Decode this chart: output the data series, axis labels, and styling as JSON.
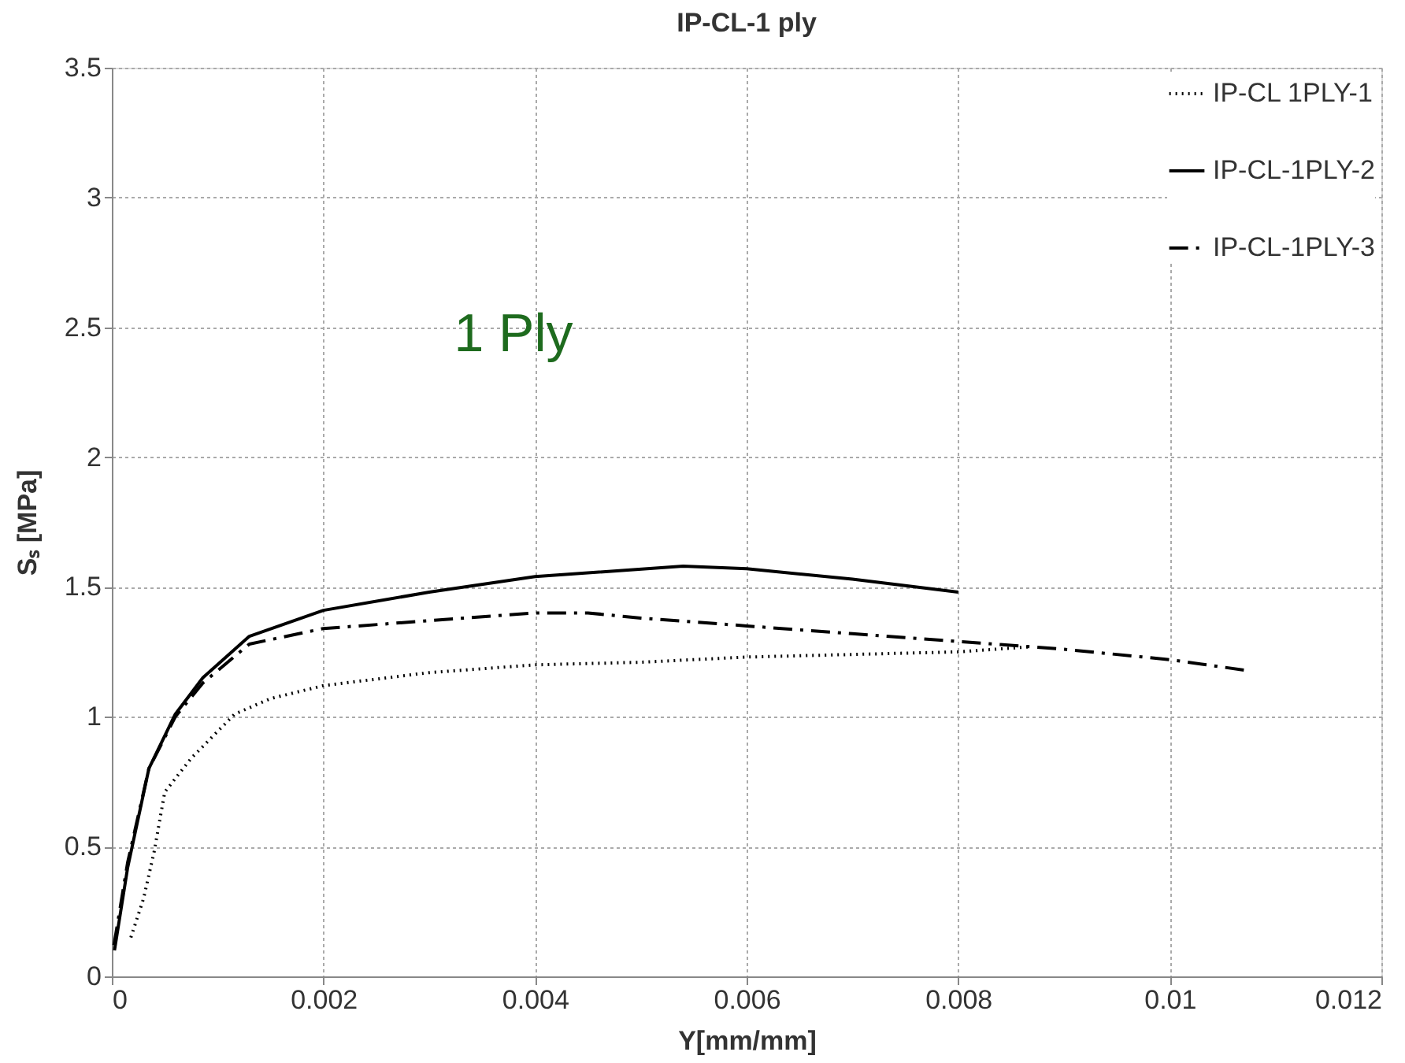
{
  "chart_data": {
    "type": "line",
    "title": "IP-CL-1 ply",
    "xlabel": "Y[mm/mm]",
    "ylabel": "Sₛ [MPa]",
    "annotations": [
      "1 Ply"
    ],
    "xlim": [
      0,
      0.012
    ],
    "xticks": [
      0,
      0.002,
      0.004,
      0.006,
      0.008,
      0.01,
      0.012
    ],
    "ylim": [
      0,
      3.5
    ],
    "yticks": [
      0,
      0.5,
      1,
      1.5,
      2,
      2.5,
      3,
      3.5
    ],
    "grid": true,
    "legend": "top right",
    "marker": "none",
    "series": [
      {
        "name": "IP-CL 1PLY-1",
        "color": "#000000",
        "line_style": "dotted",
        "x": [
          0.00018,
          0.0003,
          0.0004,
          0.0005,
          0.00075,
          0.00116,
          0.0015,
          0.002,
          0.003,
          0.004,
          0.005,
          0.006,
          0.007,
          0.008,
          0.0087
        ],
        "values": [
          0.15,
          0.3,
          0.48,
          0.71,
          0.84,
          1.01,
          1.07,
          1.12,
          1.17,
          1.2,
          1.21,
          1.23,
          1.24,
          1.25,
          1.27
        ]
      },
      {
        "name": "IP-CL-1PLY-2",
        "color": "#000000",
        "line_style": "solid",
        "x": [
          2.5e-05,
          0.00015,
          0.00035,
          0.0006,
          0.00086,
          0.0013,
          0.002,
          0.003,
          0.004,
          0.0054,
          0.006,
          0.007,
          0.008
        ],
        "values": [
          0.1,
          0.42,
          0.8,
          1.01,
          1.15,
          1.31,
          1.41,
          1.48,
          1.54,
          1.58,
          1.57,
          1.53,
          1.48
        ]
      },
      {
        "name": "IP-CL-1PLY-3",
        "color": "#000000",
        "line_style": "dashed",
        "x": [
          2e-05,
          0.00015,
          0.00035,
          0.0006,
          0.00086,
          0.0013,
          0.002,
          0.003,
          0.004,
          0.0045,
          0.005,
          0.006,
          0.007,
          0.008,
          0.009,
          0.01,
          0.0107
        ],
        "values": [
          0.12,
          0.44,
          0.8,
          1.0,
          1.13,
          1.28,
          1.34,
          1.37,
          1.4,
          1.4,
          1.38,
          1.35,
          1.32,
          1.29,
          1.26,
          1.22,
          1.18
        ]
      }
    ]
  }
}
